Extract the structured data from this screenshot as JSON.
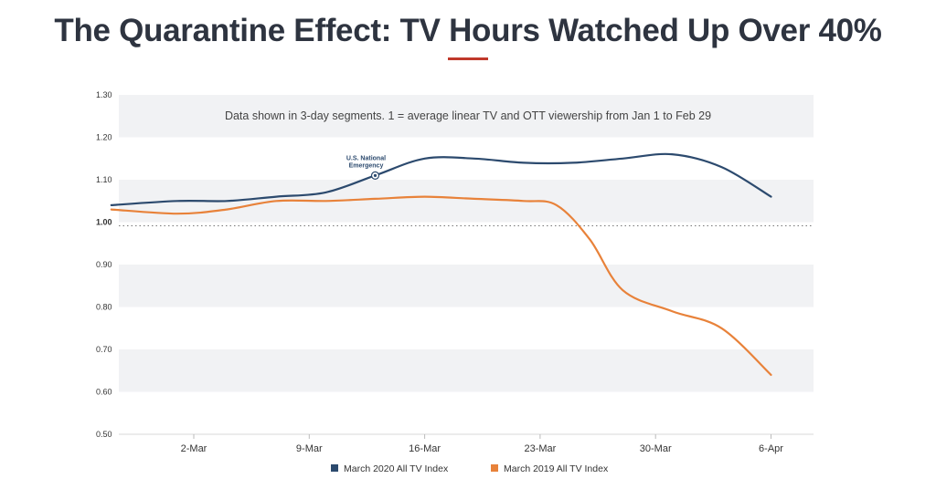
{
  "page": {
    "title": "The Quarantine Effect: TV Hours Watched Up Over 40%"
  },
  "chart_data": {
    "type": "line",
    "title": "The Quarantine Effect: TV Hours Watched Up Over 40%",
    "subtitle": "Data shown in 3-day segments. 1 = average linear TV and OTT viewership from Jan 1 to Feb 29",
    "xlabel": "",
    "ylabel": "",
    "x_range": [
      "2020-02-26",
      "2020-04-06"
    ],
    "ylim": [
      0.5,
      1.3
    ],
    "yticks": [
      "0.50",
      "0.60",
      "0.70",
      "0.80",
      "0.90",
      "1.00",
      "1.10",
      "1.20",
      "1.30"
    ],
    "xtick_labels": [
      "2-Mar",
      "9-Mar",
      "16-Mar",
      "23-Mar",
      "30-Mar",
      "6-Apr"
    ],
    "xtick_dates": [
      "2020-03-02",
      "2020-03-09",
      "2020-03-16",
      "2020-03-23",
      "2020-03-30",
      "2020-04-06"
    ],
    "baseline": 1.0,
    "grid": "alternating horizontal bands",
    "legend_position": "bottom-center",
    "annotations": [
      {
        "label_line1": "U.S. National",
        "label_line2": "Emergency",
        "x": "2020-03-13",
        "y": 1.11,
        "series": "March 2020 All TV Index"
      }
    ],
    "series": [
      {
        "name": "March 2020 All TV Index",
        "color": "#2c4a6e",
        "points": [
          {
            "x": "2020-02-26",
            "y": 1.04
          },
          {
            "x": "2020-03-01",
            "y": 1.05
          },
          {
            "x": "2020-03-04",
            "y": 1.05
          },
          {
            "x": "2020-03-07",
            "y": 1.06
          },
          {
            "x": "2020-03-10",
            "y": 1.07
          },
          {
            "x": "2020-03-13",
            "y": 1.11
          },
          {
            "x": "2020-03-16",
            "y": 1.15
          },
          {
            "x": "2020-03-19",
            "y": 1.15
          },
          {
            "x": "2020-03-22",
            "y": 1.14
          },
          {
            "x": "2020-03-25",
            "y": 1.14
          },
          {
            "x": "2020-03-28",
            "y": 1.15
          },
          {
            "x": "2020-03-31",
            "y": 1.16
          },
          {
            "x": "2020-04-03",
            "y": 1.13
          },
          {
            "x": "2020-04-06",
            "y": 1.06
          }
        ]
      },
      {
        "name": "March 2019 All TV Index",
        "color": "#e8823a",
        "points": [
          {
            "x": "2020-02-26",
            "y": 1.03
          },
          {
            "x": "2020-03-01",
            "y": 1.02
          },
          {
            "x": "2020-03-04",
            "y": 1.03
          },
          {
            "x": "2020-03-07",
            "y": 1.05
          },
          {
            "x": "2020-03-10",
            "y": 1.05
          },
          {
            "x": "2020-03-13",
            "y": 1.055
          },
          {
            "x": "2020-03-16",
            "y": 1.06
          },
          {
            "x": "2020-03-19",
            "y": 1.055
          },
          {
            "x": "2020-03-22",
            "y": 1.05
          },
          {
            "x": "2020-03-24",
            "y": 1.04
          },
          {
            "x": "2020-03-26",
            "y": 0.96
          },
          {
            "x": "2020-03-28",
            "y": 0.84
          },
          {
            "x": "2020-03-31",
            "y": 0.79
          },
          {
            "x": "2020-04-03",
            "y": 0.75
          },
          {
            "x": "2020-04-06",
            "y": 0.64
          }
        ]
      }
    ]
  }
}
